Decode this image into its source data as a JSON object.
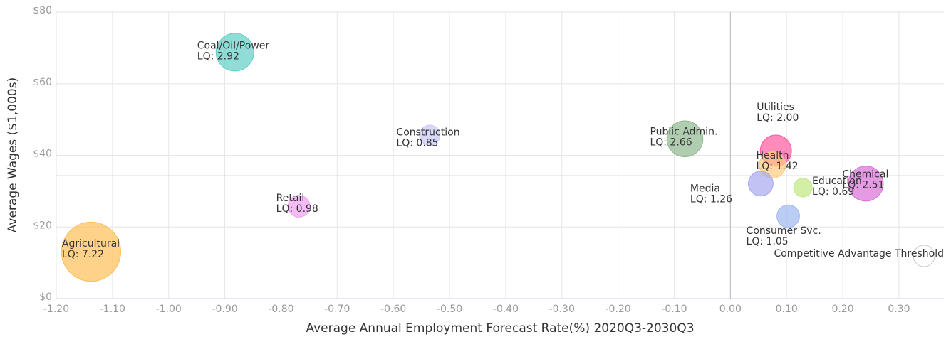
{
  "chart_data": {
    "type": "bubble",
    "x_label": "Average Annual Employment Forecast Rate(%) 2020Q3-2030Q3",
    "y_label": "Average Wages ($1,000s)",
    "labels": [
      "Agricultural",
      "Coal/Oil/Power",
      "Construction",
      "Retail",
      "Public Admin.",
      "Utilities",
      "Health",
      "Media",
      "Education",
      "Chemical",
      "Consumer Svc."
    ],
    "x": [
      -1.138,
      -0.882,
      -0.535,
      -0.768,
      -0.081,
      0.081,
      0.075,
      0.054,
      0.129,
      0.241,
      0.103
    ],
    "values": [
      13.1,
      68.8,
      45.6,
      25.8,
      44.6,
      41.3,
      37.3,
      32.1,
      31.0,
      32.1,
      23.0
    ],
    "sizes": [
      7.22,
      2.92,
      0.85,
      0.98,
      2.66,
      2.0,
      1.42,
      1.26,
      0.69,
      2.51,
      1.05
    ],
    "size_labels": [
      "LQ: 7.22",
      "LQ: 2.92",
      "LQ: 0.85",
      "LQ: 0.98",
      "LQ: 2.66",
      "LQ: 2.00",
      "LQ: 1.42",
      "LQ: 1.26",
      "LQ: 0.69",
      "LQ: 2.51",
      "LQ: 1.05"
    ],
    "colors": [
      "#fdbf57",
      "#5fcfc4",
      "#c8c8f5",
      "#f0a0f0",
      "#8fb88f",
      "#ff5aa0",
      "#ffcc80",
      "#a8a8f0",
      "#c0e880",
      "#d970d9",
      "#a0b8f0"
    ],
    "threshold": {
      "label": "Competitive Advantage Threshold",
      "x": 0,
      "y": 34.3
    },
    "xlim": [
      -1.2,
      0.38
    ],
    "xticks": [
      {
        "value": -1.2,
        "label": "-1.20"
      },
      {
        "value": -1.1,
        "label": "-1.10"
      },
      {
        "value": -1.0,
        "label": "-1.00"
      },
      {
        "value": -0.9,
        "label": "-0.90"
      },
      {
        "value": -0.8,
        "label": "-0.80"
      },
      {
        "value": -0.7,
        "label": "-0.70"
      },
      {
        "value": -0.6,
        "label": "-0.60"
      },
      {
        "value": -0.5,
        "label": "-0.50"
      },
      {
        "value": -0.4,
        "label": "-0.40"
      },
      {
        "value": -0.3,
        "label": "-0.30"
      },
      {
        "value": -0.2,
        "label": "-0.20"
      },
      {
        "value": -0.1,
        "label": "-0.10"
      },
      {
        "value": 0,
        "label": "0.00"
      },
      {
        "value": 0.1,
        "label": "0.10"
      },
      {
        "value": 0.2,
        "label": "0.20"
      },
      {
        "value": 0.3,
        "label": "0.30"
      }
    ],
    "ylim": [
      0,
      80
    ],
    "yticks": [
      {
        "value": 0,
        "label": "$0"
      },
      {
        "value": 20,
        "label": "$20"
      },
      {
        "value": 40,
        "label": "$40"
      },
      {
        "value": 60,
        "label": "$60"
      },
      {
        "value": 80,
        "label": "$80"
      }
    ],
    "grid": true
  }
}
